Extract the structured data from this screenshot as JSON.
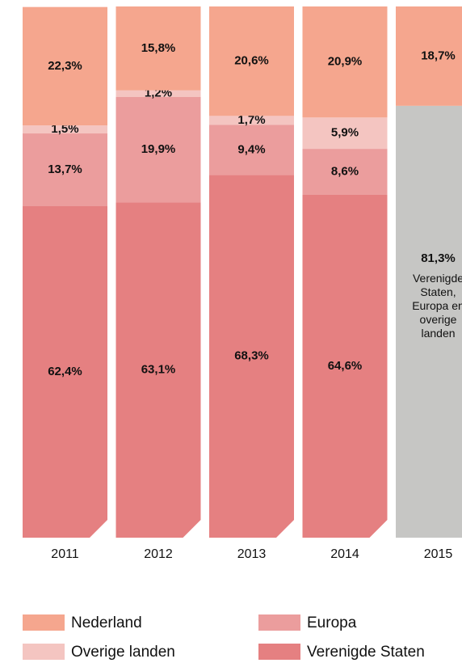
{
  "chart_data": {
    "type": "bar",
    "stacked": true,
    "categories": [
      "2011",
      "2012",
      "2013",
      "2014",
      "2015"
    ],
    "ylim": [
      0,
      100
    ],
    "series": [
      {
        "name": "Nederland",
        "color": "#f5a68e",
        "values": [
          22.3,
          15.8,
          20.6,
          20.9,
          18.7
        ],
        "value_labels": [
          "22,3%",
          "15,8%",
          "20,6%",
          "20,9%",
          "18,7%"
        ]
      },
      {
        "name": "Overige landen",
        "color": "#f4c5c1",
        "values": [
          1.5,
          1.2,
          1.7,
          5.9,
          null
        ],
        "value_labels": [
          "1,5%",
          "1,2%",
          "1,7%",
          "5,9%",
          null
        ]
      },
      {
        "name": "Europa",
        "color": "#eb9d9d",
        "values": [
          13.7,
          19.9,
          9.4,
          8.6,
          null
        ],
        "value_labels": [
          "13,7%",
          "19,9%",
          "9,4%",
          "8,6%",
          null
        ]
      },
      {
        "name": "Verenigde Staten",
        "color": "#e58081",
        "values": [
          62.4,
          63.1,
          68.3,
          64.6,
          null
        ],
        "value_labels": [
          "62,4%",
          "63,1%",
          "68,3%",
          "64,6%",
          null
        ]
      }
    ],
    "annotations": [
      {
        "text": "Verenigde Staten, Europa en overige landen",
        "value": 81.3,
        "value_label": "81,3%",
        "color": "#c6c6c4"
      }
    ]
  }
}
